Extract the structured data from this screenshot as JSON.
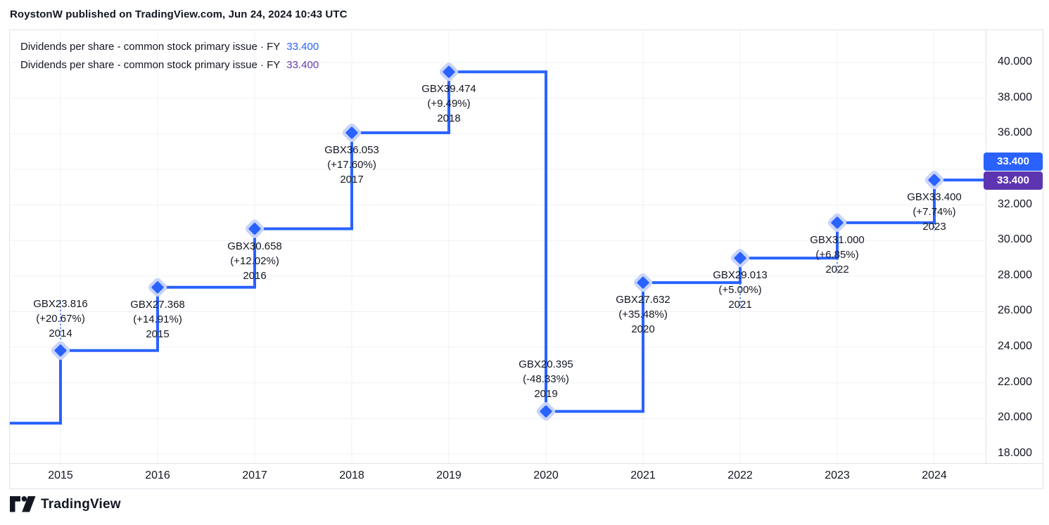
{
  "header": {
    "attribution": "RoystonW published on TradingView.com, Jun 24, 2024 10:43 UTC"
  },
  "legend": {
    "rows": [
      {
        "label": "Dividends per share - common stock primary issue · FY",
        "value": "33.400",
        "color": "#2962FF"
      },
      {
        "label": "Dividends per share - common stock primary issue · FY",
        "value": "33.400",
        "color": "#673AB7"
      }
    ]
  },
  "price_axis": {
    "badges": [
      {
        "value": "33.400",
        "color": "#2962FF"
      },
      {
        "value": "33.400",
        "color": "#5E35B1"
      }
    ]
  },
  "footer": {
    "brand": "TradingView"
  },
  "chart_data": {
    "type": "line",
    "title": "Dividends per share - common stock primary issue (FY, GBX)",
    "step": true,
    "line_color": "#2962FF",
    "marker_halo_color": "#C9D4FA",
    "grid_color": "#EEF0F6",
    "text_color": "#131722",
    "leadin_value": 19.735,
    "points": [
      {
        "year": "2014",
        "value": 23.816,
        "value_label": "GBX23.816",
        "change": "(+20.67%)",
        "label_side": "above"
      },
      {
        "year": "2015",
        "value": 27.368,
        "value_label": "GBX27.368",
        "change": "(+14.91%)",
        "label_side": "below"
      },
      {
        "year": "2016",
        "value": 30.658,
        "value_label": "GBX30.658",
        "change": "(+12.02%)",
        "label_side": "below"
      },
      {
        "year": "2017",
        "value": 36.053,
        "value_label": "GBX36.053",
        "change": "(+17.60%)",
        "label_side": "below"
      },
      {
        "year": "2018",
        "value": 39.474,
        "value_label": "GBX39.474",
        "change": "(+9.49%)",
        "label_side": "below"
      },
      {
        "year": "2019",
        "value": 20.395,
        "value_label": "GBX20.395",
        "change": "(-48.33%)",
        "label_side": "above"
      },
      {
        "year": "2020",
        "value": 27.632,
        "value_label": "GBX27.632",
        "change": "(+35.48%)",
        "label_side": "below"
      },
      {
        "year": "2021",
        "value": 29.013,
        "value_label": "GBX29.013",
        "change": "(+5.00%)",
        "label_side": "below"
      },
      {
        "year": "2022",
        "value": 31.0,
        "value_label": "GBX31.000",
        "change": "(+6.85%)",
        "label_side": "below"
      },
      {
        "year": "2023",
        "value": 33.4,
        "value_label": "GBX33.400",
        "change": "(+7.74%)",
        "label_side": "below"
      }
    ],
    "xticks": [
      "2015",
      "2016",
      "2017",
      "2018",
      "2019",
      "2020",
      "2021",
      "2022",
      "2023",
      "2024"
    ],
    "ylim": [
      18,
      40
    ],
    "ytick_step": 2,
    "yticks_visible": [
      {
        "value": 40,
        "label": "40.000"
      },
      {
        "value": 38,
        "label": "38.000"
      },
      {
        "value": 36,
        "label": "36.000"
      },
      {
        "value": 32,
        "label": "32.000"
      },
      {
        "value": 30,
        "label": "30.000"
      },
      {
        "value": 28,
        "label": "28.000"
      },
      {
        "value": 26,
        "label": "26.000"
      },
      {
        "value": 24,
        "label": "24.000"
      },
      {
        "value": 22,
        "label": "22.000"
      },
      {
        "value": 20,
        "label": "20.000"
      },
      {
        "value": 18,
        "label": "18.000"
      }
    ],
    "legend_position": "top-left",
    "grid": true
  }
}
